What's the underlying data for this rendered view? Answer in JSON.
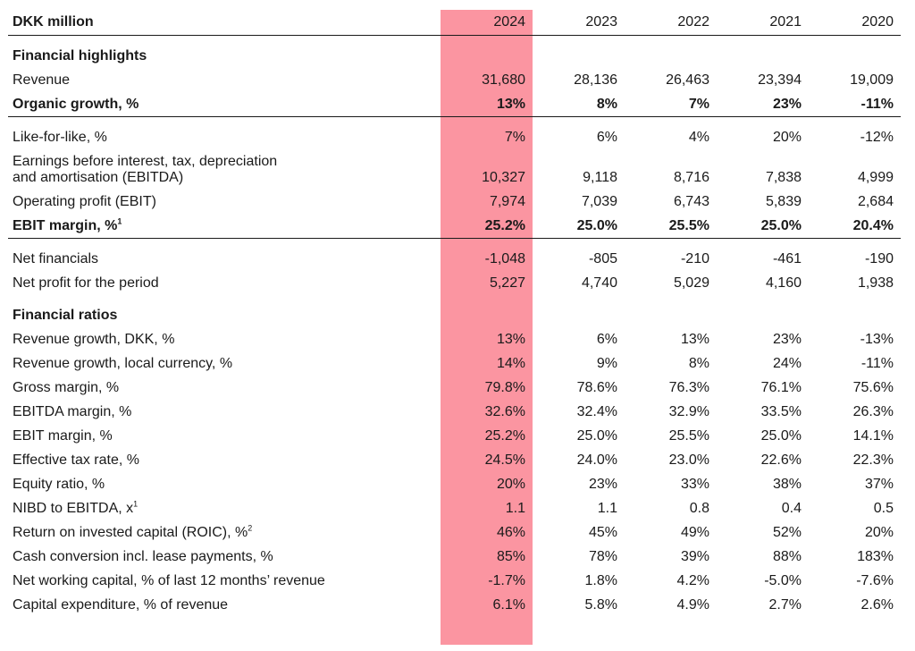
{
  "header": {
    "label": "DKK million",
    "years": [
      "2024",
      "2023",
      "2022",
      "2021",
      "2020"
    ]
  },
  "sections": {
    "highlights_title": "Financial highlights",
    "ratios_title": "Financial ratios"
  },
  "rows": {
    "revenue": {
      "label": "Revenue",
      "values": [
        "31,680",
        "28,136",
        "26,463",
        "23,394",
        "19,009"
      ]
    },
    "organic_growth": {
      "label": "Organic growth, %",
      "values": [
        "13%",
        "8%",
        "7%",
        "23%",
        "-11%"
      ]
    },
    "like_for_like": {
      "label": "Like-for-like, %",
      "values": [
        "7%",
        "6%",
        "4%",
        "20%",
        "-12%"
      ]
    },
    "ebitda": {
      "label_line1": "Earnings before interest, tax, depreciation",
      "label_line2": "and amortisation (EBITDA)",
      "values": [
        "10,327",
        "9,118",
        "8,716",
        "7,838",
        "4,999"
      ]
    },
    "ebit": {
      "label": "Operating profit (EBIT)",
      "values": [
        "7,974",
        "7,039",
        "6,743",
        "5,839",
        "2,684"
      ]
    },
    "ebit_margin_hl": {
      "label": "EBIT margin, %",
      "footnote": "1",
      "values": [
        "25.2%",
        "25.0%",
        "25.5%",
        "25.0%",
        "20.4%"
      ]
    },
    "net_financials": {
      "label": "Net financials",
      "values": [
        "-1,048",
        "-805",
        "-210",
        "-461",
        "-190"
      ]
    },
    "net_profit": {
      "label": "Net profit for the period",
      "values": [
        "5,227",
        "4,740",
        "5,029",
        "4,160",
        "1,938"
      ]
    },
    "revenue_growth_dkk": {
      "label": "Revenue growth, DKK, %",
      "values": [
        "13%",
        "6%",
        "13%",
        "23%",
        "-13%"
      ]
    },
    "revenue_growth_local": {
      "label": "Revenue growth, local currency, %",
      "values": [
        "14%",
        "9%",
        "8%",
        "24%",
        "-11%"
      ]
    },
    "gross_margin": {
      "label": "Gross margin, %",
      "values": [
        "79.8%",
        "78.6%",
        "76.3%",
        "76.1%",
        "75.6%"
      ]
    },
    "ebitda_margin": {
      "label": "EBITDA margin, %",
      "values": [
        "32.6%",
        "32.4%",
        "32.9%",
        "33.5%",
        "26.3%"
      ]
    },
    "ebit_margin": {
      "label": "EBIT margin, %",
      "values": [
        "25.2%",
        "25.0%",
        "25.5%",
        "25.0%",
        "14.1%"
      ]
    },
    "tax_rate": {
      "label": "Effective tax rate, %",
      "values": [
        "24.5%",
        "24.0%",
        "23.0%",
        "22.6%",
        "22.3%"
      ]
    },
    "equity_ratio": {
      "label": "Equity ratio, %",
      "values": [
        "20%",
        "23%",
        "33%",
        "38%",
        "37%"
      ]
    },
    "nibd_ebitda": {
      "label": "NIBD to EBITDA, x",
      "footnote": "1",
      "values": [
        "1.1",
        "1.1",
        "0.8",
        "0.4",
        "0.5"
      ]
    },
    "roic": {
      "label": "Return on invested capital (ROIC), %",
      "footnote": "2",
      "values": [
        "46%",
        "45%",
        "49%",
        "52%",
        "20%"
      ]
    },
    "cash_conversion": {
      "label": "Cash conversion incl. lease payments, %",
      "values": [
        "85%",
        "78%",
        "39%",
        "88%",
        "183%"
      ]
    },
    "nwc": {
      "label": "Net working capital, % of last 12 months’ revenue",
      "values": [
        "-1.7%",
        "1.8%",
        "4.2%",
        "-5.0%",
        "-7.6%"
      ]
    },
    "capex": {
      "label": "Capital expenditure, % of revenue",
      "values": [
        "6.1%",
        "5.8%",
        "4.9%",
        "2.7%",
        "2.6%"
      ]
    }
  },
  "highlight_color": "#fb95a1"
}
